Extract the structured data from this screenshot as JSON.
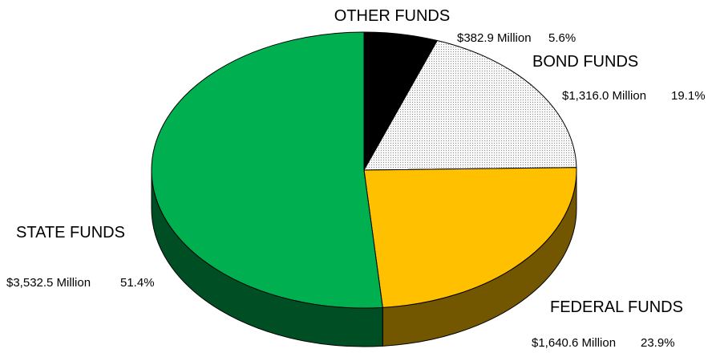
{
  "chart_data": {
    "type": "pie",
    "title": "",
    "start": "top",
    "direction": "clockwise",
    "slices": [
      {
        "name": "OTHER FUNDS",
        "amount": "$382.9 Million",
        "percent": "5.6%",
        "value": 5.6,
        "color": "#000000"
      },
      {
        "name": "BOND FUNDS",
        "amount": "$1,316.0 Million",
        "percent": "19.1%",
        "value": 19.1,
        "color": "#f2f2f2",
        "pattern": "dotted"
      },
      {
        "name": "FEDERAL FUNDS",
        "amount": "$1,640.6 Million",
        "percent": "23.9%",
        "value": 23.9,
        "color": "#ffc000"
      },
      {
        "name": "STATE FUNDS",
        "amount": "$3,532.5 Million",
        "percent": "51.4%",
        "value": 51.4,
        "color": "#00b050"
      }
    ]
  }
}
